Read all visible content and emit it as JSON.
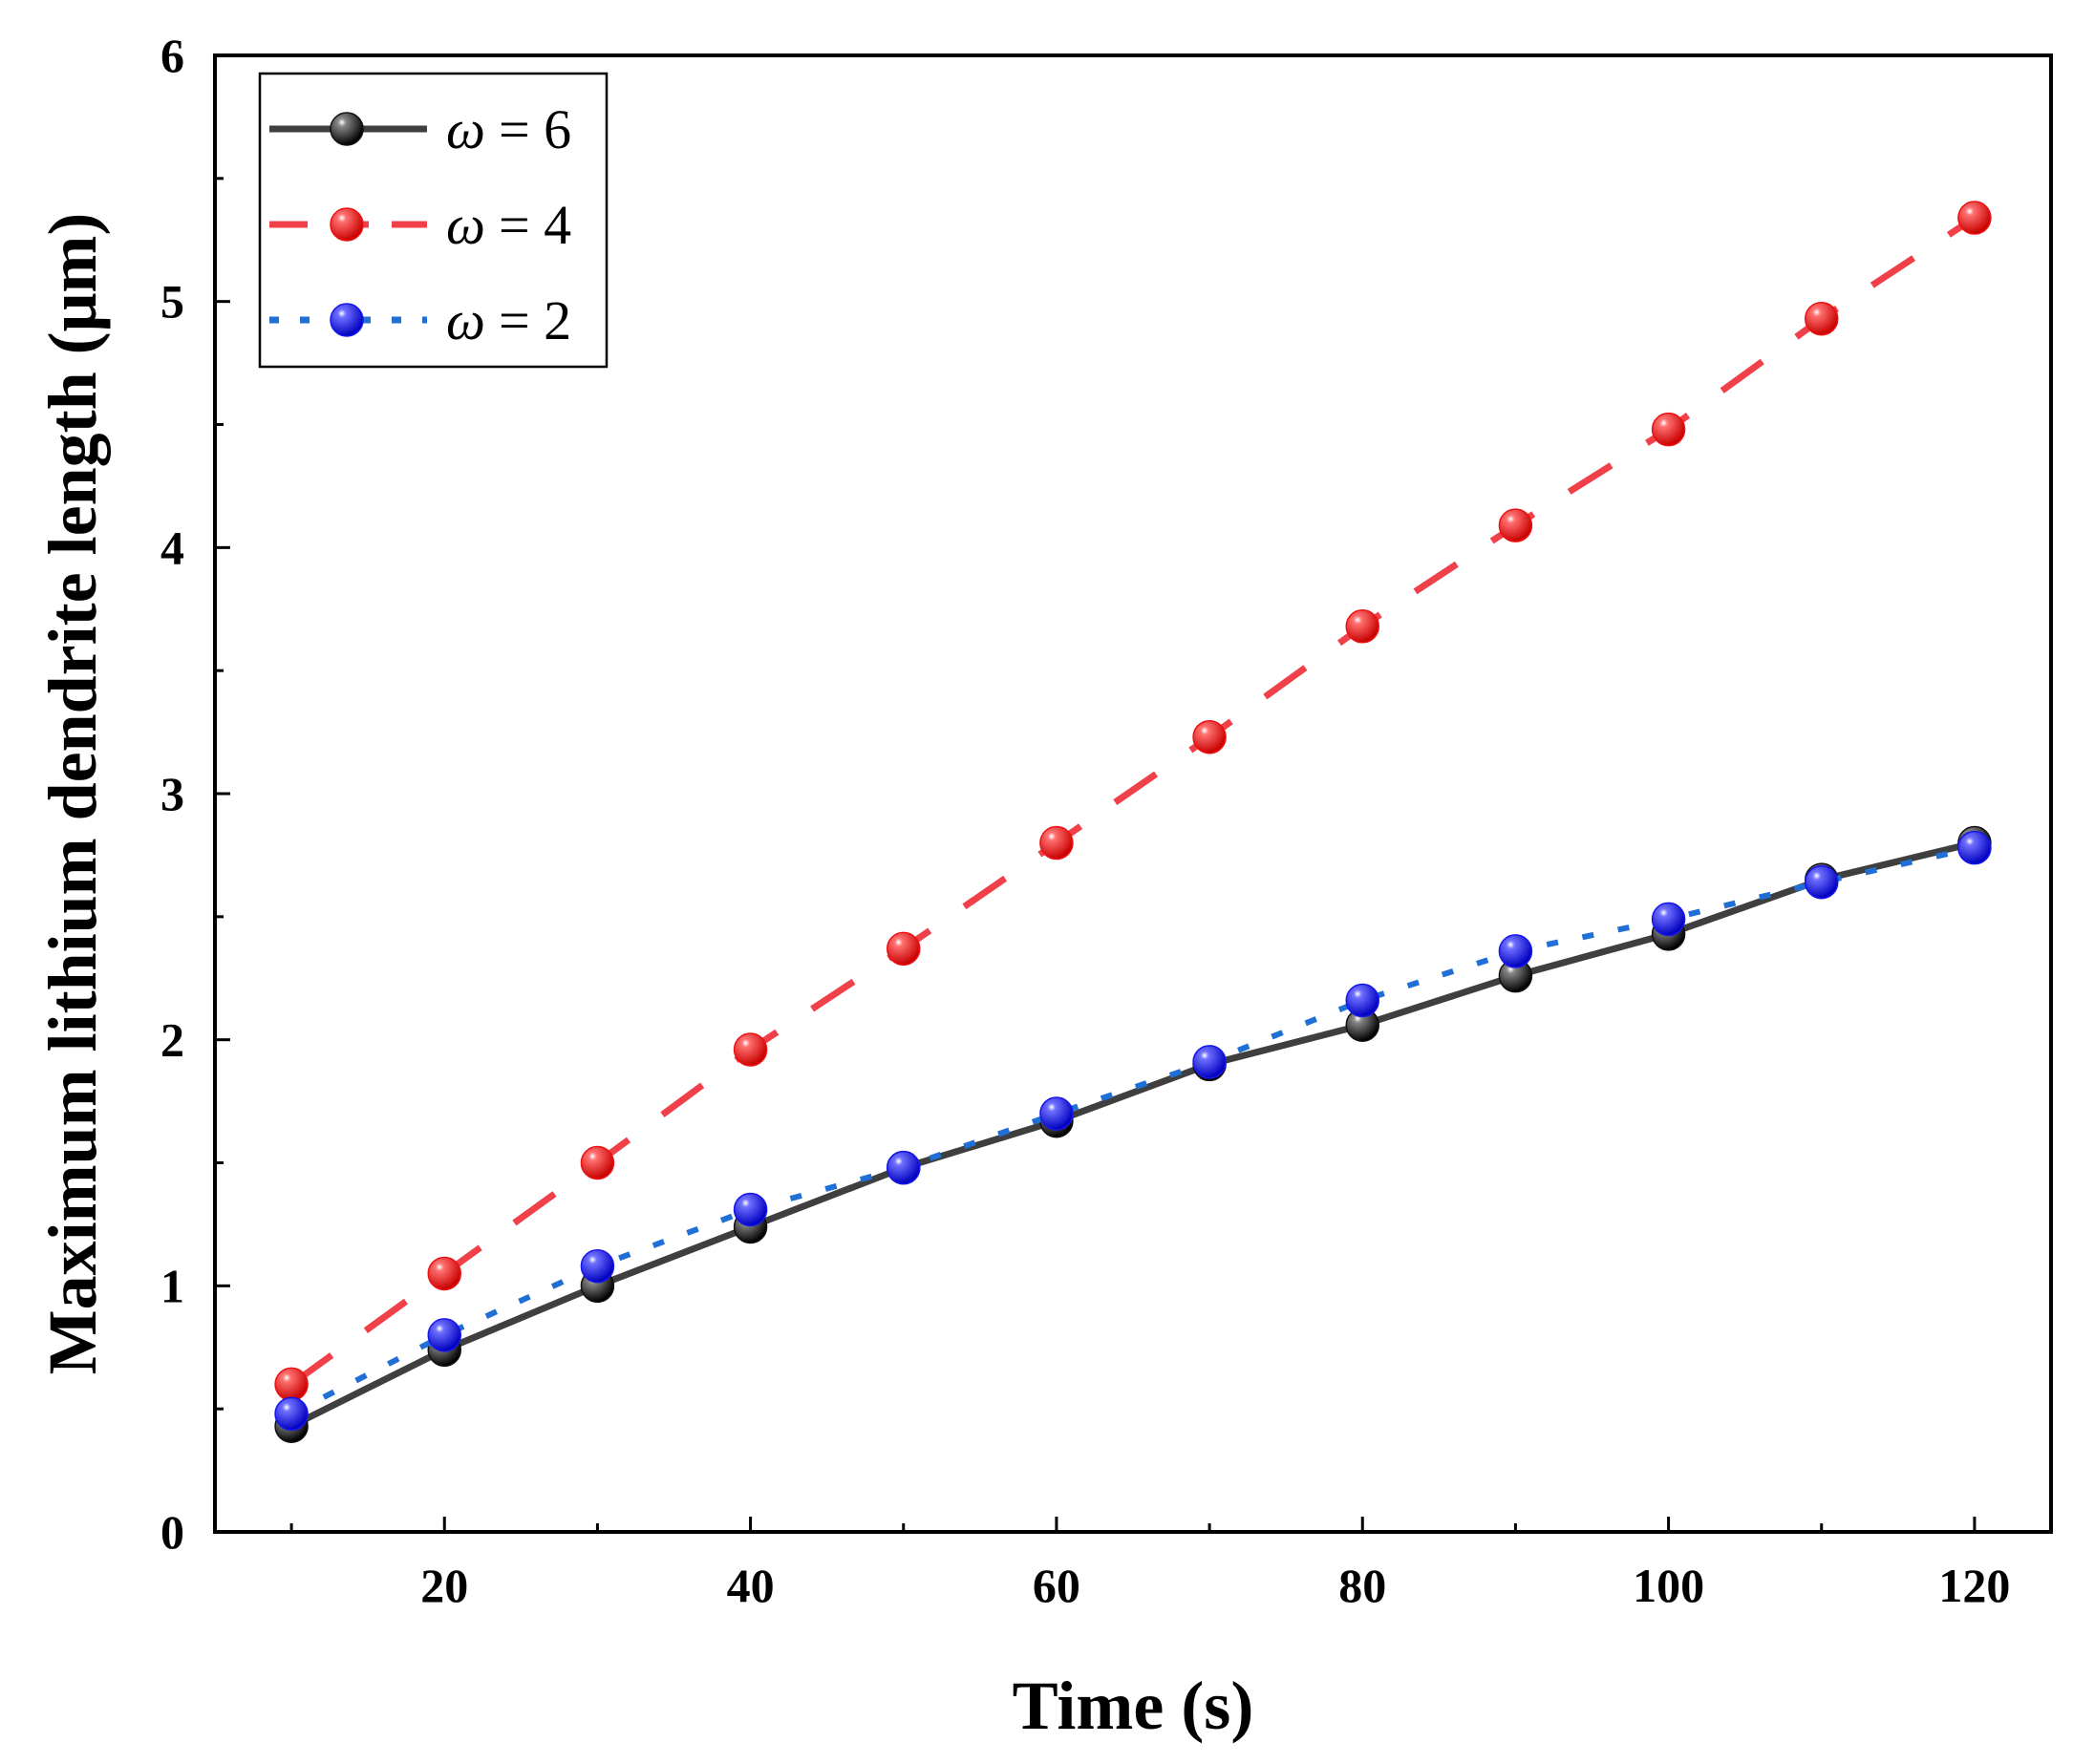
{
  "chart_data": {
    "type": "line",
    "title": "",
    "xlabel": "Time (s)",
    "ylabel": "Maximum lithium dendrite length (μm)",
    "xlim": [
      5,
      125
    ],
    "ylim": [
      0,
      6
    ],
    "xticks": [
      20,
      40,
      60,
      80,
      100,
      120
    ],
    "yticks": [
      0,
      1,
      2,
      3,
      4,
      5,
      6
    ],
    "grid": false,
    "legend_position": "top-left",
    "x": [
      10,
      20,
      30,
      40,
      50,
      60,
      70,
      80,
      90,
      100,
      110,
      120
    ],
    "series": [
      {
        "name": "ω = 6",
        "symbol": "ω",
        "value_label": "= 6",
        "color": "#3f3f3f",
        "marker_color": "#111111",
        "line_style": "solid",
        "values": [
          0.43,
          0.74,
          1.0,
          1.24,
          1.48,
          1.67,
          1.9,
          2.06,
          2.26,
          2.43,
          2.65,
          2.8
        ]
      },
      {
        "name": "ω = 4",
        "symbol": "ω",
        "value_label": "= 4",
        "color": "#f0404a",
        "marker_color": "#ee1111",
        "line_style": "dashed",
        "values": [
          0.6,
          1.05,
          1.5,
          1.96,
          2.37,
          2.8,
          3.23,
          3.68,
          4.09,
          4.48,
          4.93,
          5.34
        ]
      },
      {
        "name": "ω = 2",
        "symbol": "ω",
        "value_label": "= 2",
        "color": "#1f6fd6",
        "marker_color": "#1515ee",
        "line_style": "dotted",
        "values": [
          0.48,
          0.8,
          1.08,
          1.31,
          1.48,
          1.7,
          1.91,
          2.16,
          2.36,
          2.49,
          2.64,
          2.78
        ]
      }
    ]
  }
}
